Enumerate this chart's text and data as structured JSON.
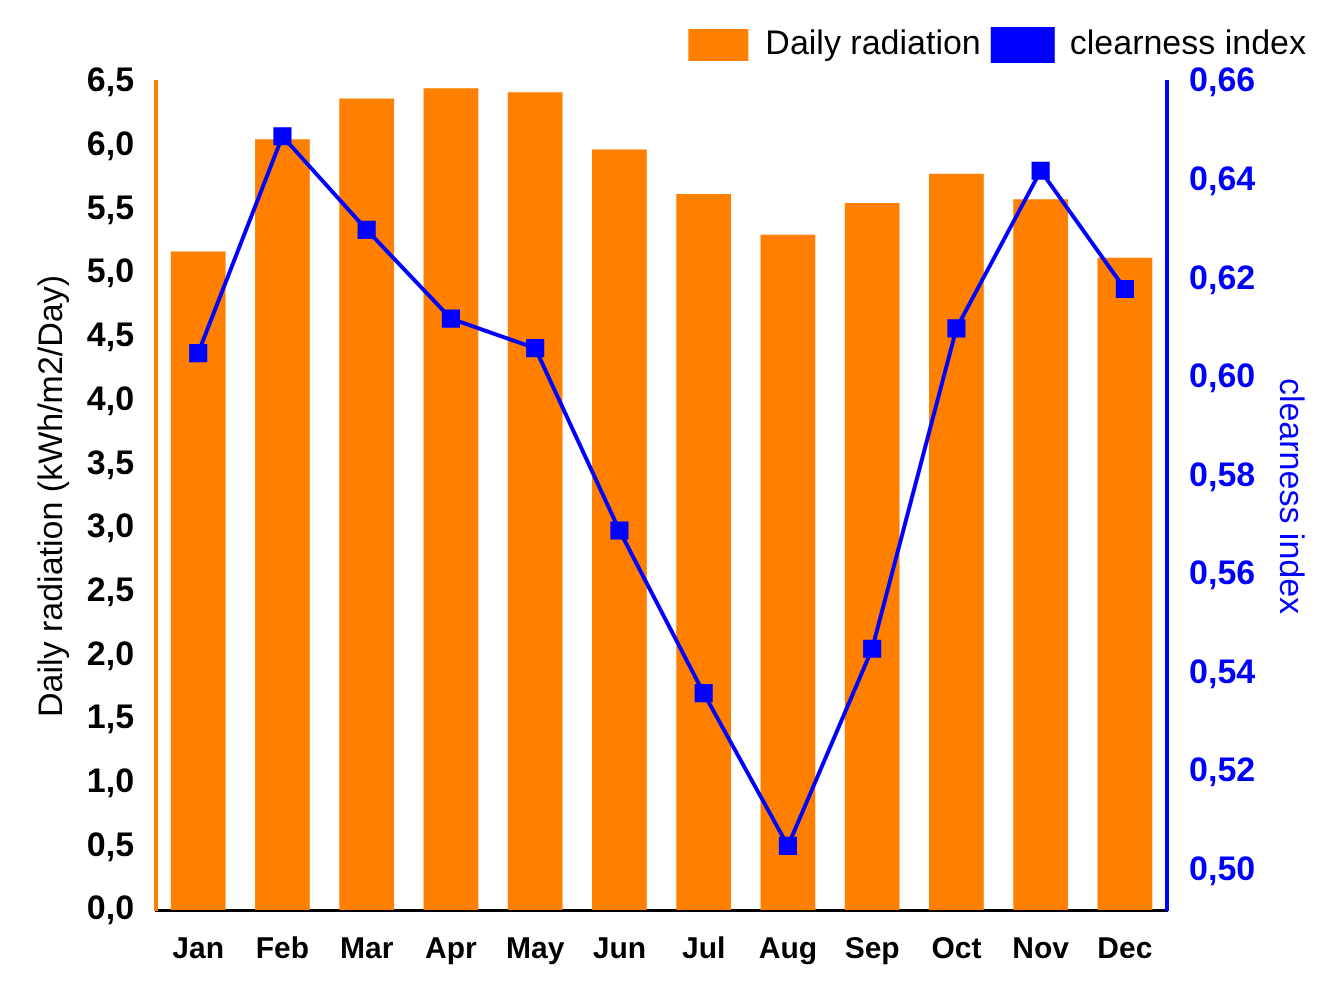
{
  "chart_data": {
    "type": "bar",
    "ylabel": "Daily radiation (kWh/m2/Day)",
    "y2label": "clearness index",
    "categories": [
      "Jan",
      "Feb",
      "Mar",
      "Apr",
      "May",
      "Jun",
      "Jul",
      "Aug",
      "Sep",
      "Oct",
      "Nov",
      "Dec"
    ],
    "series": [
      {
        "name": "Daily radiation",
        "color": "#ff8000",
        "values": [
          5.17,
          6.05,
          6.37,
          6.45,
          6.42,
          5.97,
          5.62,
          5.3,
          5.55,
          5.78,
          5.58,
          5.12
        ]
      },
      {
        "name": "clearness index",
        "type": "line",
        "axis": "y2",
        "color": "#0000ff",
        "marker": "square",
        "values": [
          0.605,
          0.649,
          0.63,
          0.612,
          0.606,
          0.569,
          0.536,
          0.505,
          0.545,
          0.61,
          0.642,
          0.618
        ]
      }
    ],
    "ylim": [
      0,
      6.5
    ],
    "yticks": [
      {
        "value": 0,
        "label": "0,0"
      },
      {
        "value": 0.5,
        "label": "0,5"
      },
      {
        "value": 1,
        "label": "1,0"
      },
      {
        "value": 1.5,
        "label": "1,5"
      },
      {
        "value": 2,
        "label": "2,0"
      },
      {
        "value": 2.5,
        "label": "2,5"
      },
      {
        "value": 3,
        "label": "3,0"
      },
      {
        "value": 3.5,
        "label": "3,5"
      },
      {
        "value": 4,
        "label": "4,0"
      },
      {
        "value": 4.5,
        "label": "4,5"
      },
      {
        "value": 5,
        "label": "5,0"
      },
      {
        "value": 5.5,
        "label": "5,5"
      },
      {
        "value": 6,
        "label": "6,0"
      },
      {
        "value": 6.5,
        "label": "6,5"
      }
    ],
    "y2lim": [
      0.492,
      0.66
    ],
    "y2ticks": [
      {
        "value": 0.5,
        "label": "0,50"
      },
      {
        "value": 0.52,
        "label": "0,52"
      },
      {
        "value": 0.54,
        "label": "0,54"
      },
      {
        "value": 0.56,
        "label": "0,56"
      },
      {
        "value": 0.58,
        "label": "0,58"
      },
      {
        "value": 0.6,
        "label": "0,60"
      },
      {
        "value": 0.62,
        "label": "0,62"
      },
      {
        "value": 0.64,
        "label": "0,64"
      },
      {
        "value": 0.66,
        "label": "0,66"
      }
    ],
    "grid": false,
    "legend": "top right",
    "line_style": "solid"
  }
}
